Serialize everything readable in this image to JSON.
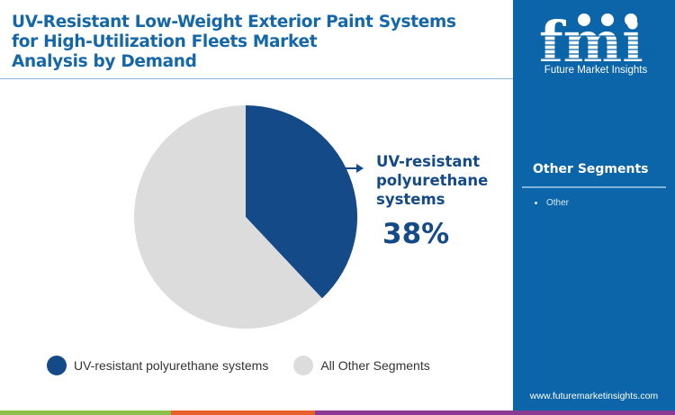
{
  "header": {
    "title_lines": [
      "UV-Resistant Low-Weight Exterior Paint Systems",
      "for High-Utilization Fleets Market",
      "Analysis by Demand"
    ]
  },
  "brand": {
    "logo_letters": "fmi",
    "name": "Future Market Insights",
    "url": "www.futuremarketinsights.com",
    "colors": {
      "sidebar": "#0b65a8",
      "primary": "#134a87",
      "title": "#1467a8",
      "grey": "#dcdcdc"
    }
  },
  "sidebar": {
    "section_title": "Other Segments",
    "items": [
      "Other"
    ]
  },
  "callout": {
    "label_lines": [
      "UV-resistant",
      "polyurethane",
      "systems"
    ],
    "value": "38%"
  },
  "legend": [
    {
      "label": "UV-resistant polyurethane systems",
      "color": "#134a87"
    },
    {
      "label": "All Other Segments",
      "color": "#dcdcdc"
    }
  ],
  "footer_bars": [
    "#8cc04b",
    "#e8612c",
    "#8b3a93"
  ],
  "chart_data": {
    "type": "pie",
    "title": "UV-Resistant Low-Weight Exterior Paint Systems for High-Utilization Fleets Market Analysis by Demand",
    "categories": [
      "UV-resistant polyurethane systems",
      "All Other Segments"
    ],
    "values": [
      38,
      62
    ],
    "colors": [
      "#134a87",
      "#dcdcdc"
    ],
    "annotations": [
      {
        "label": "UV-resistant polyurethane systems",
        "value": "38%"
      }
    ],
    "legend_position": "bottom"
  }
}
